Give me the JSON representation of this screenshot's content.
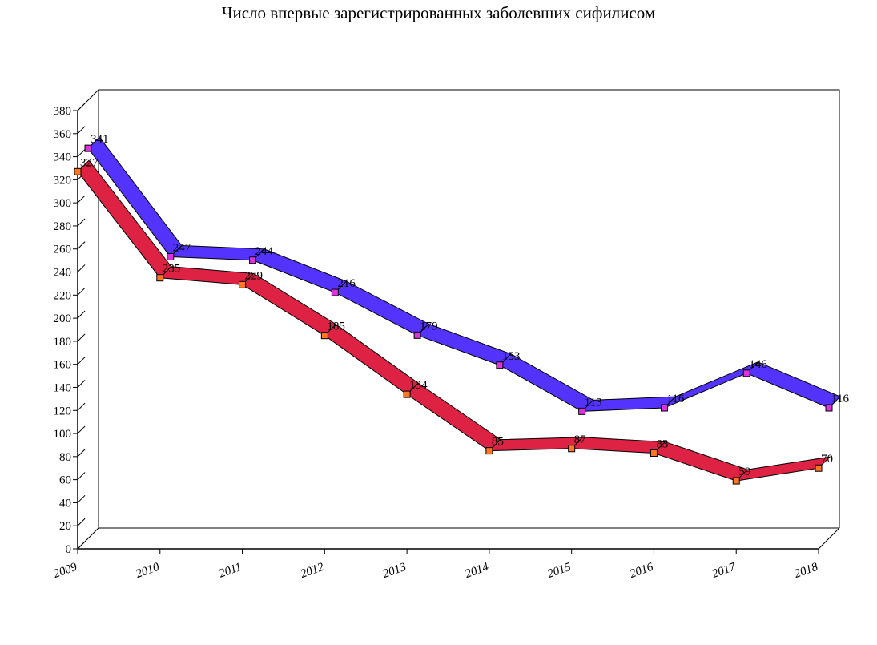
{
  "chart_data": {
    "type": "line",
    "title": "Число впервые зарегистрированных заболевших сифилисом",
    "xlabel": "",
    "ylabel": "",
    "categories": [
      "2009",
      "2010",
      "2011",
      "2012",
      "2013",
      "2014",
      "2015",
      "2016",
      "2017",
      "2018"
    ],
    "ylim": [
      0,
      380
    ],
    "ytick_step": 20,
    "series": [
      {
        "values": [
          341,
          247,
          244,
          216,
          179,
          153,
          113,
          116,
          146,
          116
        ],
        "ribbon_color": "#5533ff",
        "marker_color": "#dd33dd"
      },
      {
        "values": [
          327,
          235,
          229,
          185,
          134,
          85,
          87,
          83,
          59,
          70
        ],
        "ribbon_color": "#dd2244",
        "marker_color": "#ff7722"
      }
    ],
    "depth_3d": true,
    "legend": "none",
    "grid": false
  }
}
